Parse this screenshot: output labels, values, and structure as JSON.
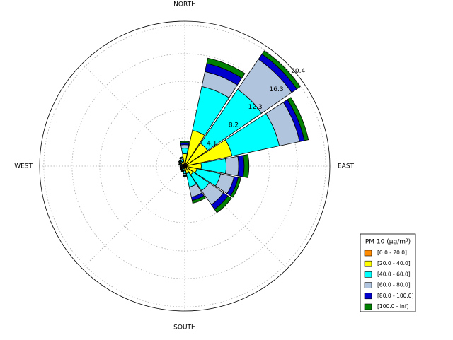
{
  "chart_data": {
    "type": "windrose",
    "direction_labels": [
      "NORTH",
      "EAST",
      "SOUTH",
      "WEST"
    ],
    "rlim": [
      0,
      21
    ],
    "rticks": [
      4.1,
      8.2,
      12.3,
      16.3,
      20.4
    ],
    "legend_title": "PM 10 (μg/m³)",
    "legend": "lower right",
    "series": [
      {
        "name": "[0.0 - 20.0]",
        "color": "#ff8c00",
        "values": [
          0.3,
          0.4,
          0.4,
          0.4,
          0.3,
          0.3,
          0.3,
          0.3,
          0.3,
          0.2,
          0.2,
          0.2,
          0.2,
          0.3,
          0.3,
          0.3
        ]
      },
      {
        "name": "[20.0 - 40.0]",
        "color": "#ffff00",
        "values": [
          1.5,
          4.9,
          3.6,
          6.6,
          2.1,
          1.5,
          1.2,
          0.8,
          0.4,
          0.2,
          0.2,
          0.1,
          0.1,
          0.2,
          0.3,
          0.4
        ]
      },
      {
        "name": "[40.0 - 60.0]",
        "color": "#00ffff",
        "values": [
          0.8,
          6.5,
          9.5,
          7.0,
          3.6,
          3.5,
          2.8,
          2.0,
          0.4,
          0.2,
          0.1,
          0.1,
          0.1,
          0.1,
          0.2,
          0.3
        ]
      },
      {
        "name": "[60.0 - 80.0]",
        "color": "#b0c4de",
        "values": [
          0.5,
          2.2,
          5.3,
          3.0,
          1.8,
          2.0,
          2.5,
          1.5,
          0.2,
          0.1,
          0.1,
          0.1,
          0.1,
          0.1,
          0.1,
          0.2
        ]
      },
      {
        "name": "[80.0 - 100.0]",
        "color": "#0000cd",
        "values": [
          0.3,
          1.2,
          0.9,
          0.7,
          0.8,
          0.6,
          0.8,
          0.5,
          0.1,
          0.1,
          0.1,
          0.1,
          0.1,
          0.1,
          0.1,
          0.1
        ]
      },
      {
        "name": "[100.0 - inf]",
        "color": "#008000",
        "values": [
          0.2,
          0.8,
          0.6,
          0.6,
          0.7,
          0.4,
          0.6,
          0.4,
          0.1,
          0.1,
          0.1,
          0.1,
          0.1,
          0.1,
          0.1,
          0.1
        ]
      }
    ]
  }
}
